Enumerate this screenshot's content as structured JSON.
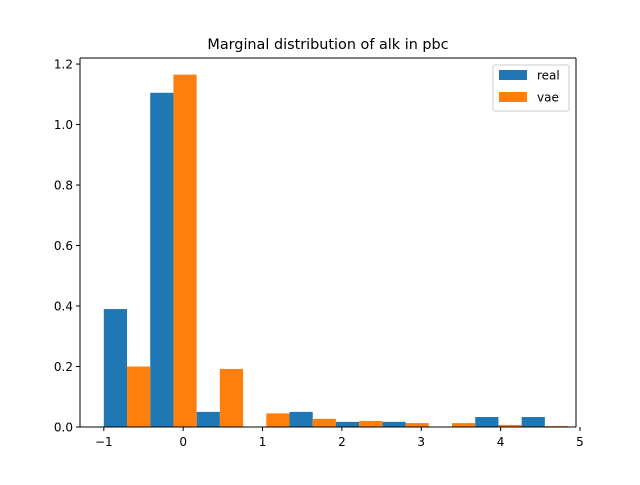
{
  "chart_data": {
    "type": "bar",
    "title": "Marginal distribution of alk in pbc",
    "xlabel": "",
    "ylabel": "",
    "xlim": [
      -1.3,
      4.95
    ],
    "ylim": [
      0,
      1.22
    ],
    "xticks": [
      -1,
      0,
      1,
      2,
      3,
      4,
      5
    ],
    "xtick_labels": [
      "−1",
      "0",
      "1",
      "2",
      "3",
      "4",
      "5"
    ],
    "yticks": [
      0.0,
      0.2,
      0.4,
      0.6,
      0.8,
      1.0,
      1.2
    ],
    "ytick_labels": [
      "0.0",
      "0.2",
      "0.4",
      "0.6",
      "0.8",
      "1.0",
      "1.2"
    ],
    "bin_width": 0.585,
    "bin_starts": [
      -1.0,
      -0.415,
      0.17,
      0.755,
      1.34,
      1.925,
      2.51,
      3.095,
      3.68,
      4.265
    ],
    "grid": false,
    "legend_position": "upper right",
    "series": [
      {
        "name": "real",
        "color": "#1f77b4",
        "values": [
          0.39,
          1.105,
          0.05,
          0.0,
          0.05,
          0.017,
          0.017,
          0.0,
          0.033,
          0.033
        ]
      },
      {
        "name": "vae",
        "color": "#ff7f0e",
        "values": [
          0.2,
          1.165,
          0.192,
          0.045,
          0.027,
          0.02,
          0.013,
          0.013,
          0.007,
          0.003
        ]
      }
    ]
  }
}
